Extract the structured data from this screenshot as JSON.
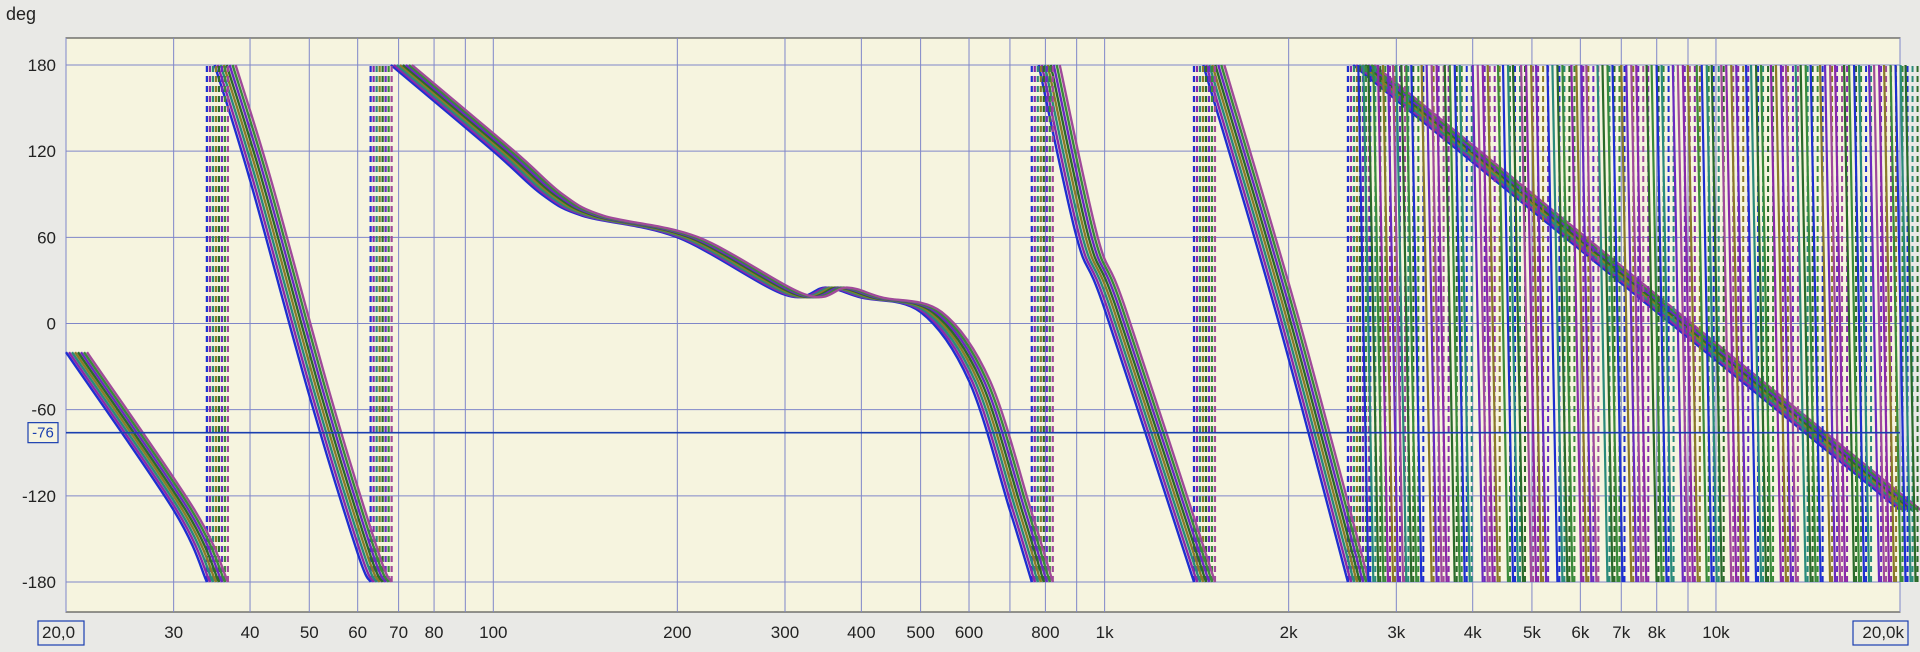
{
  "chart_data": {
    "type": "line",
    "title": "",
    "ylabel": "deg",
    "xlabel": "",
    "xscale": "log",
    "xlim": [
      20,
      20000
    ],
    "ylim": [
      -180,
      180
    ],
    "grid": true,
    "wrap_phase": true,
    "x_ticks": [
      {
        "value": 20,
        "label": "20,0",
        "boxed": true
      },
      {
        "value": 30,
        "label": "30"
      },
      {
        "value": 40,
        "label": "40"
      },
      {
        "value": 50,
        "label": "50"
      },
      {
        "value": 60,
        "label": "60"
      },
      {
        "value": 70,
        "label": "70"
      },
      {
        "value": 80,
        "label": "80"
      },
      {
        "value": 100,
        "label": "100"
      },
      {
        "value": 200,
        "label": "200"
      },
      {
        "value": 300,
        "label": "300"
      },
      {
        "value": 400,
        "label": "400"
      },
      {
        "value": 500,
        "label": "500"
      },
      {
        "value": 600,
        "label": "600"
      },
      {
        "value": 800,
        "label": "800"
      },
      {
        "value": 1000,
        "label": "1k"
      },
      {
        "value": 2000,
        "label": "2k"
      },
      {
        "value": 3000,
        "label": "3k"
      },
      {
        "value": 4000,
        "label": "4k"
      },
      {
        "value": 5000,
        "label": "5k"
      },
      {
        "value": 6000,
        "label": "6k"
      },
      {
        "value": 7000,
        "label": "7k"
      },
      {
        "value": 8000,
        "label": "8k"
      },
      {
        "value": 10000,
        "label": "10k"
      },
      {
        "value": 20000,
        "label": "20,0k",
        "boxed": true
      }
    ],
    "x_grid": [
      20,
      30,
      40,
      50,
      60,
      70,
      80,
      90,
      100,
      200,
      300,
      400,
      500,
      600,
      700,
      800,
      900,
      1000,
      2000,
      3000,
      4000,
      5000,
      6000,
      7000,
      8000,
      9000,
      10000,
      20000
    ],
    "y_ticks": [
      {
        "value": 180,
        "label": "180"
      },
      {
        "value": 120,
        "label": "120"
      },
      {
        "value": 60,
        "label": "60"
      },
      {
        "value": 0,
        "label": "0"
      },
      {
        "value": -60,
        "label": "-60"
      },
      {
        "value": -120,
        "label": "-120"
      },
      {
        "value": -180,
        "label": "-180"
      }
    ],
    "cursor": {
      "value": -76,
      "label": "-76"
    },
    "series_colors": [
      "#1e2fd0",
      "#8a2aa8",
      "#2a8a7a",
      "#8a7a2a",
      "#2a6a2a",
      "#6a2ac0",
      "#3a8a3a",
      "#a04a9a"
    ],
    "series_count": 8,
    "series_offsets": [
      0,
      1,
      2,
      3,
      4,
      5,
      6,
      7
    ],
    "base_phase": [
      [
        20,
        -20
      ],
      [
        30,
        -130
      ],
      [
        34,
        -180
      ],
      [
        35,
        180
      ],
      [
        40,
        100
      ],
      [
        50,
        -50
      ],
      [
        60,
        -160
      ],
      [
        63,
        -180
      ],
      [
        68,
        180
      ],
      [
        100,
        120
      ],
      [
        120,
        90
      ],
      [
        140,
        75
      ],
      [
        200,
        60
      ],
      [
        300,
        20
      ],
      [
        350,
        25
      ],
      [
        400,
        18
      ],
      [
        500,
        8
      ],
      [
        600,
        -40
      ],
      [
        700,
        -130
      ],
      [
        760,
        -180
      ],
      [
        780,
        180
      ],
      [
        900,
        60
      ],
      [
        1000,
        10
      ],
      [
        1400,
        -180
      ],
      [
        1450,
        180
      ],
      [
        1900,
        10
      ],
      [
        2500,
        -180
      ],
      [
        2550,
        180
      ],
      [
        20000,
        -130
      ]
    ]
  }
}
